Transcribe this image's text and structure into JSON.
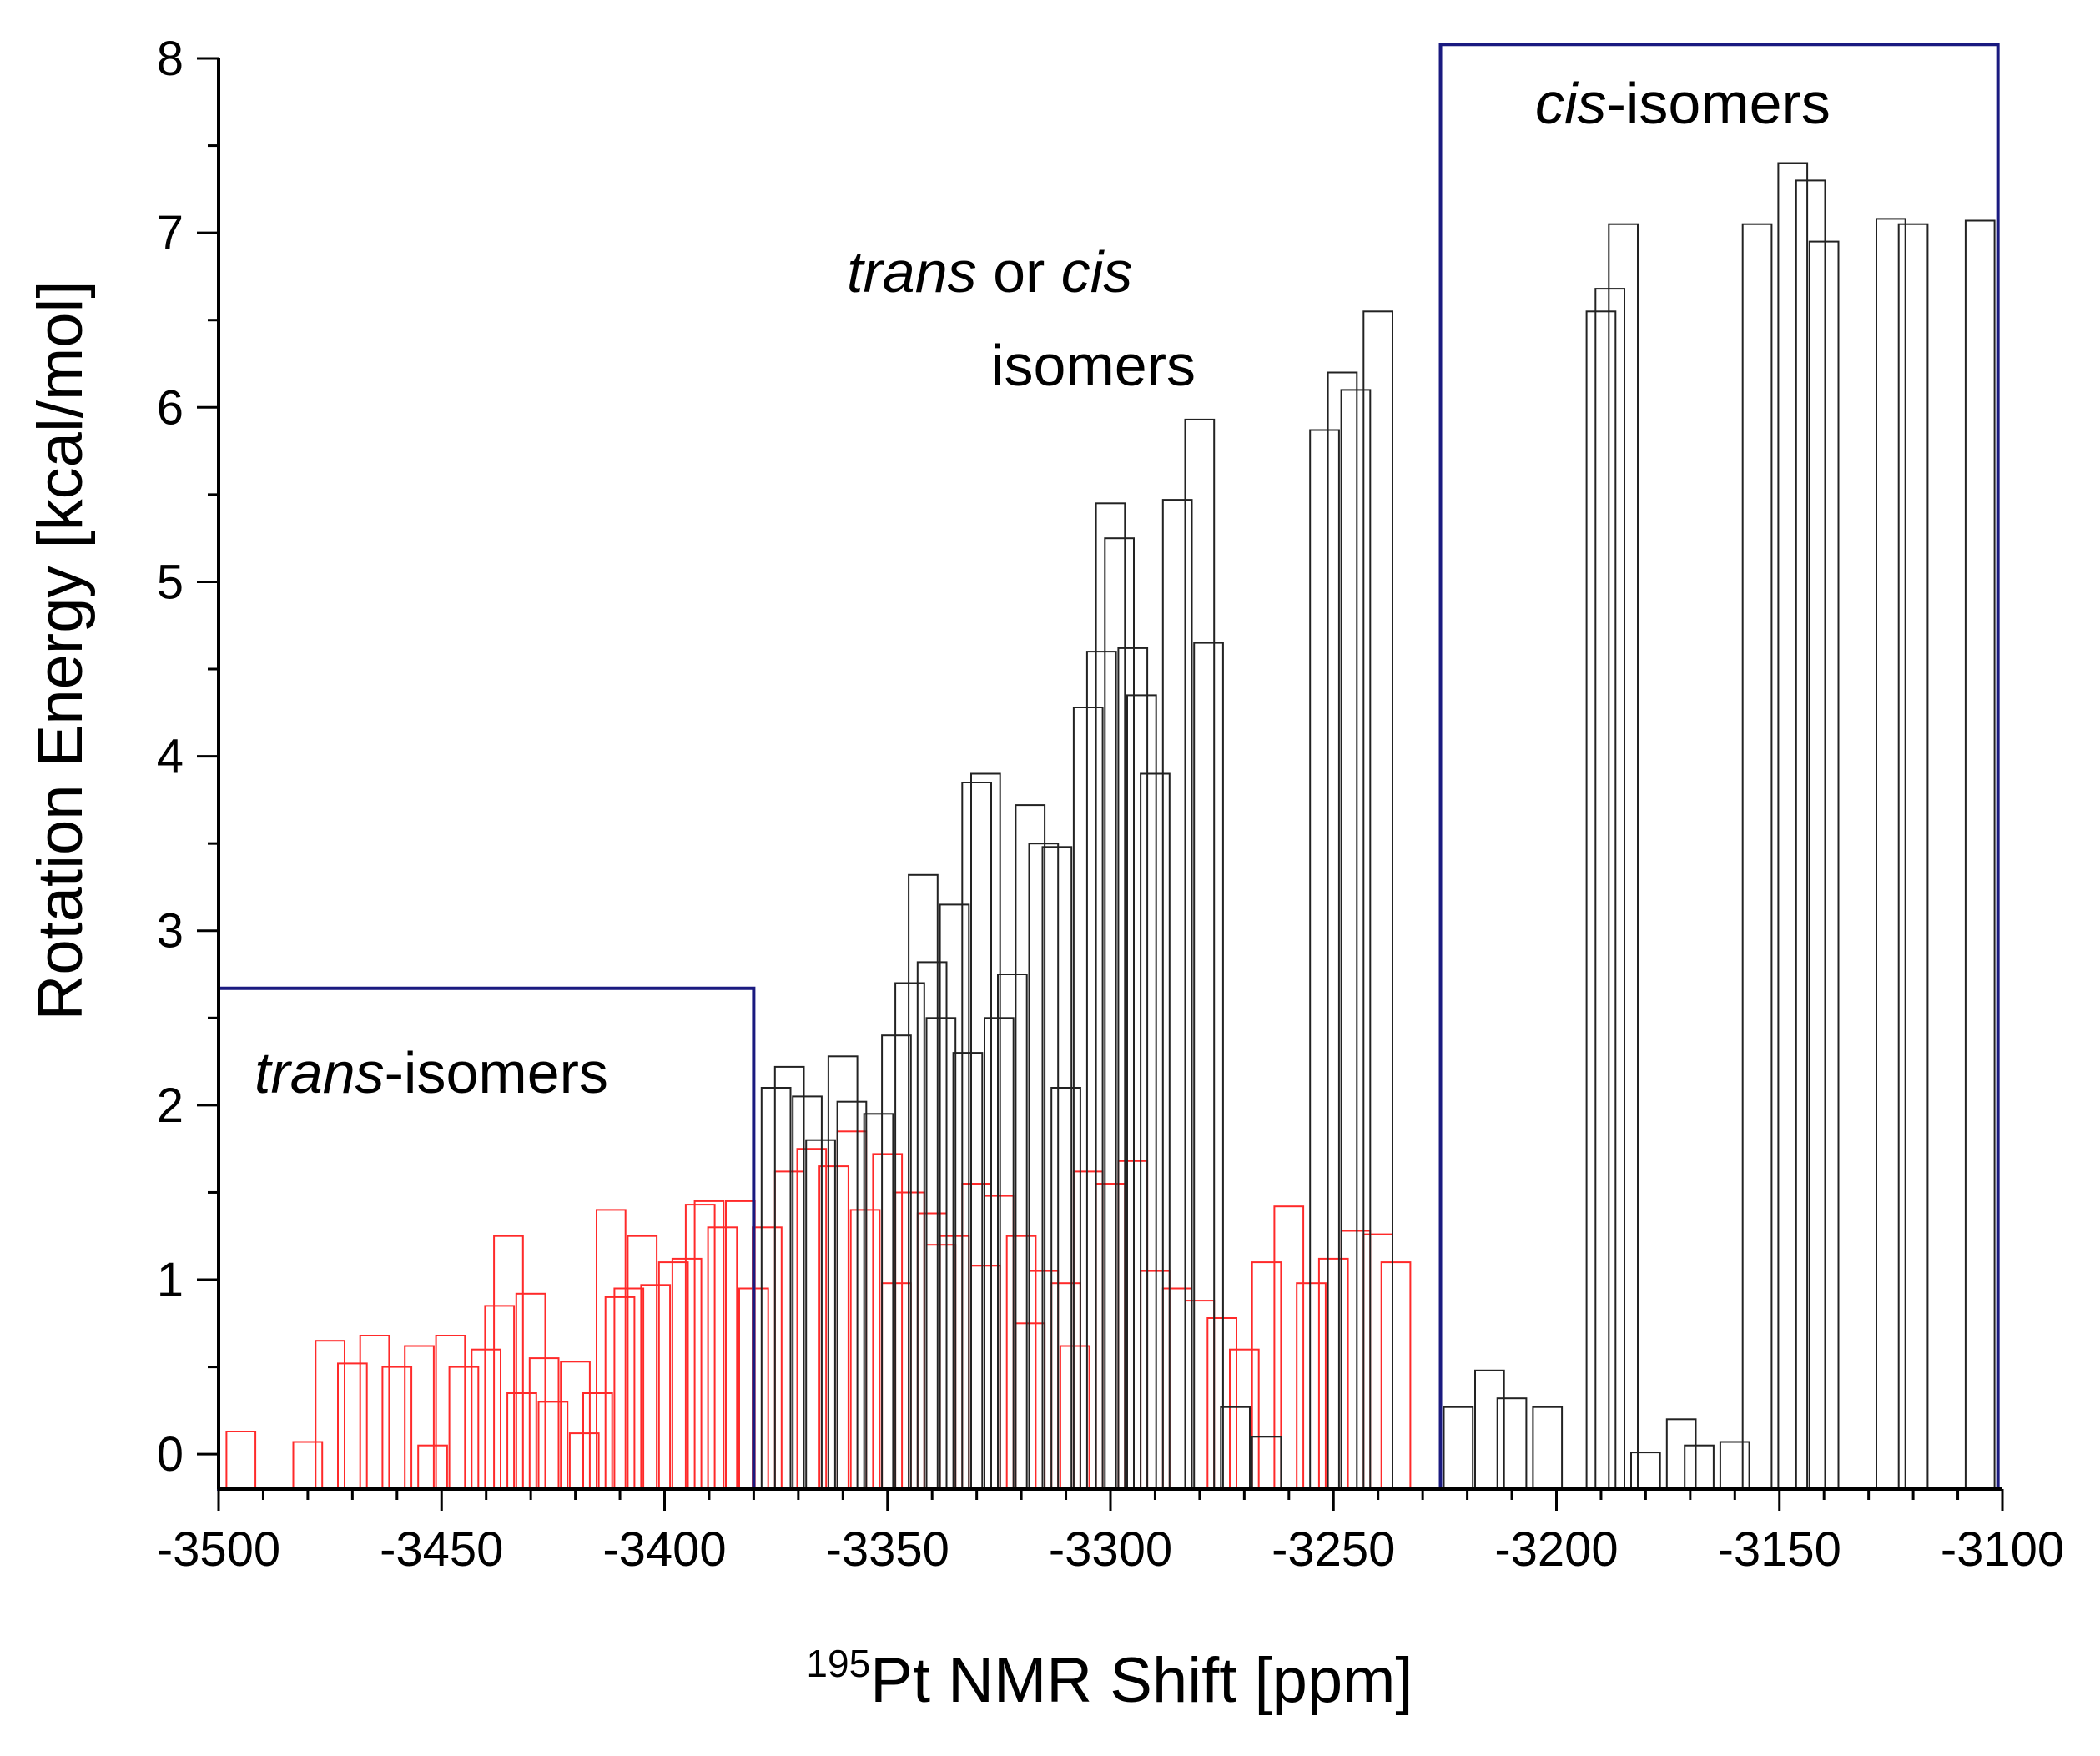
{
  "chart_data": {
    "type": "bar",
    "xlabel": "Pt NMR Shift [ppm]",
    "xlabel_superscript": "195",
    "ylabel": "Rotation Energy [kcal/mol]",
    "xlim": [
      -3500,
      -3100
    ],
    "ylim": [
      -0.2,
      8
    ],
    "x_ticks": [
      -3500,
      -3450,
      -3400,
      -3350,
      -3300,
      -3250,
      -3200,
      -3150,
      -3100
    ],
    "x_tick_labels": [
      "-3500",
      "-3450",
      "-3400",
      "-3350",
      "-3300",
      "-3250",
      "-3200",
      "-3150",
      "-3100"
    ],
    "y_ticks": [
      0,
      1,
      2,
      3,
      4,
      5,
      6,
      7,
      8
    ],
    "y_tick_labels": [
      "0",
      "1",
      "2",
      "3",
      "4",
      "5",
      "6",
      "7",
      "8"
    ],
    "bar_width_ppm": 6.5,
    "colors": {
      "trans_series": "#ff2a2a",
      "other_series": "#222222",
      "region_box": "#1a1a80"
    },
    "series": [
      {
        "name": "red",
        "color": "#ff2a2a",
        "x": [
          -3495,
          -3480,
          -3475,
          -3470,
          -3465,
          -3460,
          -3455,
          -3452,
          -3448,
          -3445,
          -3440,
          -3437,
          -3435,
          -3432,
          -3430,
          -3427,
          -3425,
          -3420,
          -3418,
          -3415,
          -3412,
          -3410,
          -3408,
          -3405,
          -3402,
          -3398,
          -3395,
          -3392,
          -3390,
          -3387,
          -3383,
          -3380,
          -3377,
          -3372,
          -3367,
          -3362,
          -3358,
          -3355,
          -3350,
          -3345,
          -3340,
          -3335,
          -3330,
          -3325,
          -3320,
          -3315,
          -3310,
          -3305,
          -3300,
          -3295,
          -3290,
          -3285,
          -3280,
          -3275,
          -3270,
          -3265,
          -3260,
          -3255,
          -3250,
          -3245,
          -3240,
          -3236,
          -3338,
          -3328,
          -3348,
          -3318,
          -3308
        ],
        "values": [
          0.13,
          0.07,
          0.65,
          0.52,
          0.68,
          0.5,
          0.62,
          0.05,
          0.68,
          0.5,
          0.6,
          0.85,
          1.25,
          0.35,
          0.92,
          0.55,
          0.3,
          0.53,
          0.12,
          0.35,
          1.4,
          0.9,
          0.95,
          1.25,
          0.97,
          1.1,
          1.12,
          1.43,
          1.45,
          1.3,
          1.45,
          0.95,
          1.3,
          1.62,
          1.75,
          1.65,
          1.85,
          1.4,
          1.72,
          1.5,
          1.38,
          1.25,
          1.55,
          1.48,
          1.25,
          1.05,
          0.98,
          1.62,
          1.55,
          1.68,
          1.05,
          0.95,
          0.88,
          0.78,
          0.6,
          1.1,
          1.42,
          0.98,
          1.12,
          1.28,
          1.26,
          1.1,
          1.2,
          1.08,
          0.98,
          0.75,
          0.62
        ]
      },
      {
        "name": "black",
        "color": "#222222",
        "x": [
          -3375,
          -3372,
          -3368,
          -3365,
          -3360,
          -3358,
          -3352,
          -3348,
          -3345,
          -3342,
          -3340,
          -3338,
          -3335,
          -3332,
          -3330,
          -3328,
          -3325,
          -3322,
          -3318,
          -3315,
          -3312,
          -3310,
          -3305,
          -3302,
          -3300,
          -3298,
          -3295,
          -3293,
          -3290,
          -3285,
          -3280,
          -3278,
          -3272,
          -3265,
          -3252,
          -3248,
          -3245,
          -3240,
          -3222,
          -3215,
          -3210,
          -3202,
          -3190,
          -3188,
          -3185,
          -3180,
          -3172,
          -3168,
          -3160,
          -3155,
          -3147,
          -3143,
          -3140,
          -3125,
          -3120,
          -3105
        ],
        "values": [
          2.1,
          2.22,
          2.05,
          1.8,
          2.28,
          2.02,
          1.95,
          2.4,
          2.7,
          3.32,
          2.82,
          2.5,
          3.15,
          2.3,
          3.85,
          3.9,
          2.5,
          2.75,
          3.72,
          3.5,
          3.48,
          2.1,
          4.28,
          4.6,
          5.45,
          5.25,
          4.62,
          4.35,
          3.9,
          5.47,
          5.93,
          4.65,
          0.27,
          0.1,
          5.87,
          6.2,
          6.1,
          6.55,
          0.27,
          0.48,
          0.32,
          0.27,
          6.55,
          6.68,
          7.05,
          0.01,
          0.2,
          0.05,
          0.07,
          7.05,
          7.4,
          7.3,
          6.95,
          7.08,
          7.05,
          7.07
        ]
      }
    ],
    "annotations": {
      "trans_region": {
        "x_range": [
          -3500,
          -3380
        ],
        "y_range": [
          -0.2,
          2.67
        ],
        "label_italic": "trans",
        "label_rest": "-isomers"
      },
      "cis_region": {
        "x_range": [
          -3226,
          -3101
        ],
        "y_range": [
          -0.2,
          8.08
        ],
        "label_italic": "cis",
        "label_rest": "-isomers"
      },
      "middle": {
        "line1_italic_a": "trans",
        "line1_mid": " or ",
        "line1_italic_b": "cis",
        "line2": "isomers"
      }
    }
  }
}
